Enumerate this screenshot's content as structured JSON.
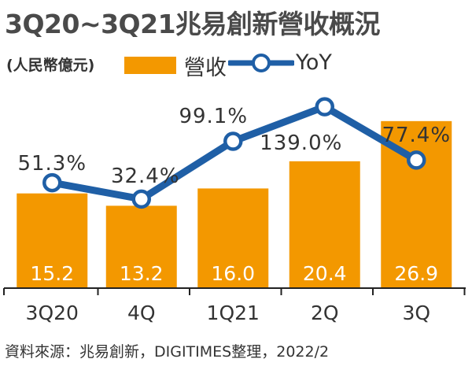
{
  "title": "3Q20~3Q21兆易創新營收概況",
  "unit": "(人民幣億元)",
  "legend": {
    "revenue": "營收",
    "yoy": "YoY"
  },
  "source": "資料來源：兆易創新，DIGITIMES整理，2022/2",
  "colors": {
    "bar": "#F39800",
    "line": "#1F5FA6",
    "marker_fill": "#ffffff",
    "bar_label": "#ffffff",
    "text": "#333333",
    "axis": "#222222"
  },
  "chart_data": {
    "type": "bar",
    "categories": [
      "3Q20",
      "4Q",
      "1Q21",
      "2Q",
      "3Q"
    ],
    "series": [
      {
        "name": "營收",
        "type": "bar",
        "values": [
          15.2,
          13.2,
          16.0,
          20.4,
          26.9
        ],
        "labels": [
          "15.2",
          "13.2",
          "16.0",
          "20.4",
          "26.9"
        ]
      },
      {
        "name": "YoY",
        "type": "line",
        "values": [
          51.3,
          32.4,
          99.1,
          139.0,
          77.4
        ],
        "labels": [
          "51.3%",
          "32.4%",
          "99.1%",
          "139.0%",
          "77.4%"
        ]
      }
    ],
    "legend_position": "top",
    "grid": false
  }
}
